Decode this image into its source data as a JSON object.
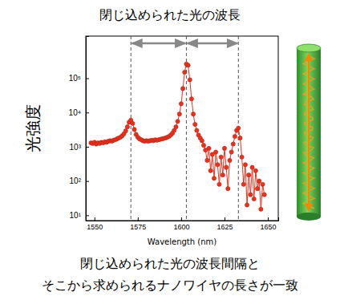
{
  "chart_data": {
    "type": "line",
    "title": "閉じ込められた光の波長",
    "x_label": "Wavelength (nm)",
    "y_label": "光強度",
    "caption": [
      "閉じ込められた光の波長間隔と",
      "そこから求められるナノワイヤの長さが一致"
    ],
    "log": "y",
    "grid": false,
    "xlim": [
      1545,
      1656
    ],
    "xticks": [
      1550,
      1575,
      1600,
      1625,
      1650
    ],
    "ylim": [
      7,
      1700000
    ],
    "yticks": [
      {
        "value": 10,
        "label": "10¹"
      },
      {
        "value": 100,
        "label": "10²"
      },
      {
        "value": 1000,
        "label": "10³"
      },
      {
        "value": 10000,
        "label": "10⁴"
      },
      {
        "value": 100000,
        "label": "10⁵"
      }
    ],
    "peaks": [
      1571,
      1603,
      1633
    ],
    "x": [
      1548,
      1549,
      1550,
      1551,
      1552,
      1553,
      1554,
      1555,
      1556,
      1557,
      1558,
      1559,
      1560,
      1561,
      1562,
      1563,
      1564,
      1565,
      1566,
      1567,
      1568,
      1569,
      1570,
      1571,
      1572,
      1573,
      1574,
      1575,
      1576,
      1577,
      1578,
      1579,
      1580,
      1581,
      1582,
      1583,
      1584,
      1585,
      1586,
      1587,
      1588,
      1589,
      1590,
      1591,
      1592,
      1593,
      1594,
      1595,
      1596,
      1597,
      1598,
      1599,
      1600,
      1601,
      1602,
      1603,
      1604,
      1605,
      1606,
      1607,
      1608,
      1609,
      1610,
      1611,
      1612,
      1613,
      1614,
      1615,
      1616,
      1617,
      1618,
      1619,
      1620,
      1621,
      1622,
      1623,
      1624,
      1625,
      1626,
      1627,
      1628,
      1629,
      1630,
      1631,
      1632,
      1633,
      1634,
      1635,
      1636,
      1637,
      1638,
      1639,
      1640,
      1641,
      1642,
      1643,
      1644,
      1645,
      1646,
      1647,
      1648
    ],
    "series": [
      {
        "color": "#e8321e",
        "marker": "circle",
        "line_style": "solid",
        "values": [
          1300,
          1250,
          1350,
          1200,
          1300,
          1250,
          1350,
          1300,
          1400,
          1350,
          1450,
          1500,
          1450,
          1550,
          1600,
          1700,
          1800,
          1900,
          2100,
          2400,
          2900,
          3800,
          5200,
          6000,
          4800,
          3200,
          2300,
          1900,
          1700,
          1600,
          1500,
          1450,
          1500,
          1450,
          1500,
          1550,
          1500,
          1600,
          1550,
          1600,
          1650,
          1700,
          1750,
          1800,
          1900,
          2000,
          2200,
          2500,
          3000,
          3800,
          5500,
          9000,
          18000,
          50000,
          150000,
          260000,
          240000,
          90000,
          25000,
          9000,
          4500,
          3000,
          2200,
          1800,
          1500,
          1100,
          800,
          400,
          900,
          200,
          600,
          120,
          700,
          300,
          80,
          500,
          150,
          900,
          250,
          60,
          400,
          700,
          1200,
          2000,
          3000,
          3500,
          1800,
          500,
          80,
          300,
          20,
          150,
          40,
          250,
          30,
          200,
          60,
          100,
          15,
          80,
          40
        ]
      }
    ]
  }
}
